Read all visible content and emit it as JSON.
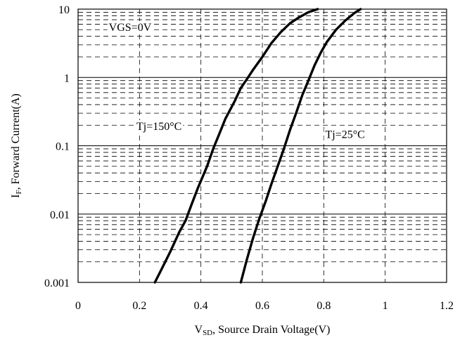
{
  "chart_data": {
    "type": "line",
    "xlabel": {
      "main": "V",
      "sub": "SD",
      "rest": ", Source Drain Voltage(V)"
    },
    "ylabel": {
      "main": "I",
      "sub": "F",
      "rest": ", Forward Current(A)"
    },
    "xlim": [
      0,
      1.2
    ],
    "ylim": [
      0.001,
      10
    ],
    "y_scale": "log",
    "grid": true,
    "x_ticks": [
      0,
      0.2,
      0.4,
      0.6,
      0.8,
      1,
      1.2
    ],
    "x_tick_labels": [
      "0",
      "0.2",
      "0.4",
      "0.6",
      "0.8",
      "1",
      "1.2"
    ],
    "y_ticks": [
      0.001,
      0.01,
      0.1,
      1,
      10
    ],
    "y_tick_labels": [
      "0.001",
      "0.01",
      "0.1",
      "1",
      "10"
    ],
    "annotations": [
      {
        "text": "VGS=0V",
        "x": 0.1,
        "y": 4.8
      },
      {
        "text": "Tj=150°C",
        "x": 0.19,
        "y": 0.17
      },
      {
        "text": "Tj=25°C",
        "x": 0.805,
        "y": 0.13
      }
    ],
    "series": [
      {
        "label_ref": "Tj=150°C",
        "x": [
          0.25,
          0.27,
          0.3,
          0.33,
          0.35,
          0.37,
          0.39,
          0.42,
          0.44,
          0.46,
          0.48,
          0.51,
          0.53,
          0.55,
          0.57,
          0.6,
          0.63,
          0.66,
          0.69,
          0.72,
          0.75,
          0.78
        ],
        "y": [
          0.001,
          0.0015,
          0.0028,
          0.0055,
          0.008,
          0.014,
          0.024,
          0.05,
          0.09,
          0.15,
          0.25,
          0.45,
          0.7,
          0.95,
          1.3,
          2.0,
          3.2,
          4.6,
          6.2,
          7.6,
          9.0,
          10.0
        ]
      },
      {
        "label_ref": "Tj=25°C",
        "x": [
          0.53,
          0.55,
          0.57,
          0.59,
          0.61,
          0.63,
          0.65,
          0.67,
          0.69,
          0.71,
          0.73,
          0.75,
          0.77,
          0.79,
          0.81,
          0.84,
          0.87,
          0.9,
          0.92
        ],
        "y": [
          0.001,
          0.0022,
          0.0045,
          0.0085,
          0.015,
          0.028,
          0.05,
          0.09,
          0.17,
          0.3,
          0.55,
          0.9,
          1.5,
          2.3,
          3.3,
          5.0,
          6.8,
          8.8,
          10.0
        ]
      }
    ]
  }
}
